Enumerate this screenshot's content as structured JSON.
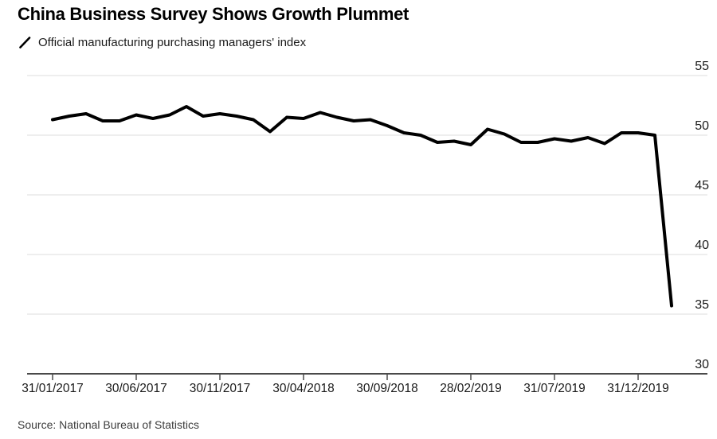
{
  "chart_data": {
    "type": "line",
    "title": "China Business Survey Shows Growth Plummet",
    "legend": "Official manufacturing purchasing managers' index",
    "source": "Source: National Bureau of Statistics",
    "series_name": "Official manufacturing PMI",
    "x": [
      "2017-01",
      "2017-02",
      "2017-03",
      "2017-04",
      "2017-05",
      "2017-06",
      "2017-07",
      "2017-08",
      "2017-09",
      "2017-10",
      "2017-11",
      "2017-12",
      "2018-01",
      "2018-02",
      "2018-03",
      "2018-04",
      "2018-05",
      "2018-06",
      "2018-07",
      "2018-08",
      "2018-09",
      "2018-10",
      "2018-11",
      "2018-12",
      "2019-01",
      "2019-02",
      "2019-03",
      "2019-04",
      "2019-05",
      "2019-06",
      "2019-07",
      "2019-08",
      "2019-09",
      "2019-10",
      "2019-11",
      "2019-12",
      "2020-01",
      "2020-02"
    ],
    "values": [
      51.3,
      51.6,
      51.8,
      51.2,
      51.2,
      51.7,
      51.4,
      51.7,
      52.4,
      51.6,
      51.8,
      51.6,
      51.3,
      50.3,
      51.5,
      51.4,
      51.9,
      51.5,
      51.2,
      51.3,
      50.8,
      50.2,
      50.0,
      49.4,
      49.5,
      49.2,
      50.5,
      50.1,
      49.4,
      49.4,
      49.7,
      49.5,
      49.8,
      49.3,
      50.2,
      50.2,
      50.0,
      35.7
    ],
    "ylim": [
      30,
      55
    ],
    "y_ticks": [
      55,
      50,
      45,
      40,
      35,
      30
    ],
    "x_ticks": [
      {
        "index": 0,
        "label": "31/01/2017"
      },
      {
        "index": 5,
        "label": "30/06/2017"
      },
      {
        "index": 10,
        "label": "30/11/2017"
      },
      {
        "index": 15,
        "label": "30/04/2018"
      },
      {
        "index": 20,
        "label": "30/09/2018"
      },
      {
        "index": 25,
        "label": "28/02/2019"
      },
      {
        "index": 30,
        "label": "31/07/2019"
      },
      {
        "index": 35,
        "label": "31/12/2019"
      }
    ],
    "grid": "horizontal",
    "legend_position": "top-left",
    "colors": {
      "line": "#000000",
      "grid": "#dcdcdc",
      "axis": "#4a4a4a",
      "tick_label": "#1a1a1a",
      "title": "#000000",
      "source": "#3d3d3d"
    }
  }
}
